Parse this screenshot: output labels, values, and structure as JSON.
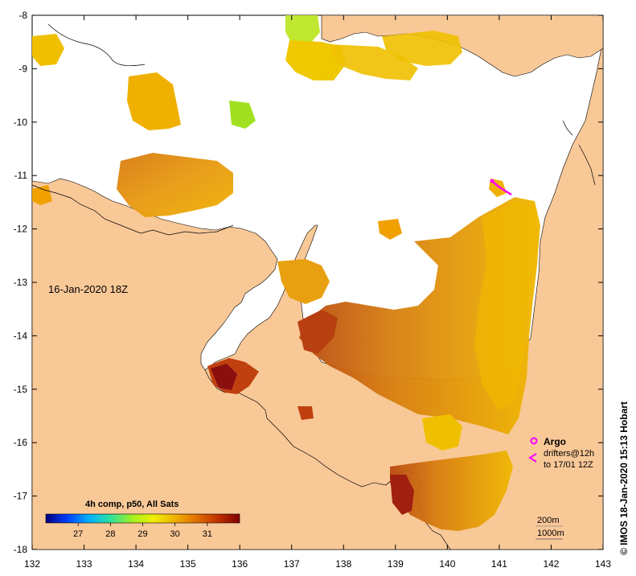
{
  "map": {
    "date_label": "16-Jan-2020 18Z",
    "credit": "© IMOS 18-Jan-2020 15:13 Hobart",
    "lon_ticks": [
      "132",
      "133",
      "134",
      "135",
      "136",
      "137",
      "138",
      "139",
      "140",
      "141",
      "142",
      "143"
    ],
    "lat_ticks": [
      "-8",
      "-9",
      "-10",
      "-11",
      "-12",
      "-13",
      "-14",
      "-15",
      "-16",
      "-17",
      "-18"
    ],
    "colorbar": {
      "title": "4h comp, p50, All Sats",
      "tick_labels": [
        "27",
        "28",
        "29",
        "30",
        "31"
      ],
      "range": [
        26,
        32
      ],
      "stops": [
        "#000080",
        "#0040ff",
        "#00b0ff",
        "#30e0a0",
        "#a0f020",
        "#f0f000",
        "#f0b000",
        "#e07000",
        "#c03000",
        "#800000"
      ]
    },
    "legend": {
      "argo_label": "Argo",
      "drifters_label": "drifters@12h",
      "drifters_to_label": "to 17/01 12Z",
      "isobath_200": "200m",
      "isobath_1000": "1000m"
    },
    "colors": {
      "land": "#f9c897",
      "sea": "#ffffff",
      "argo": "#ff00ff"
    }
  }
}
